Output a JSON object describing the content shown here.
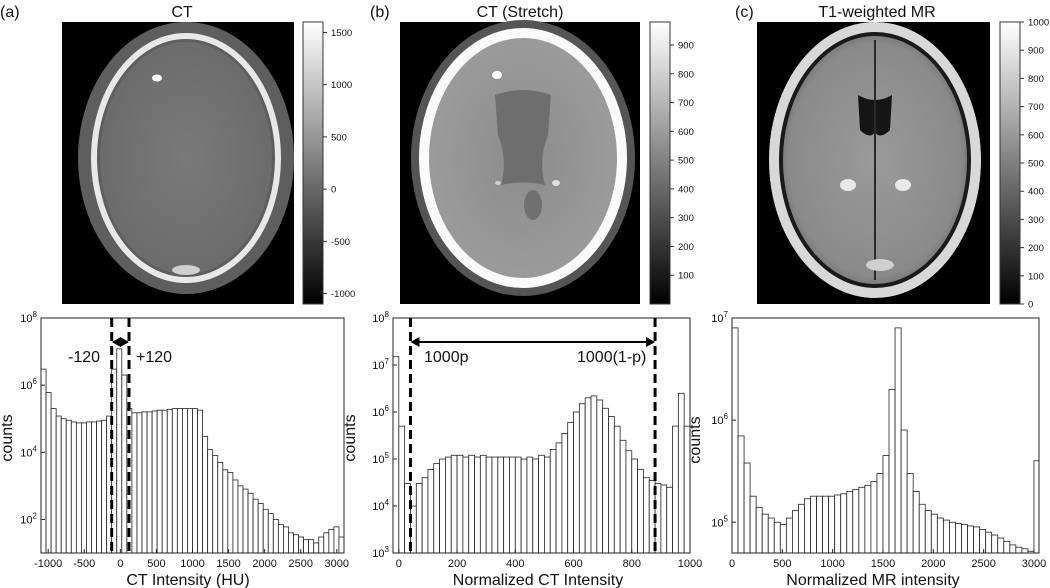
{
  "panels": [
    {
      "letter": "(a)",
      "title": "CT",
      "colorbar_ticks": [
        "1500",
        "1000",
        "500",
        "0",
        "-500",
        "-1000"
      ]
    },
    {
      "letter": "(b)",
      "title": "CT (Stretch)",
      "colorbar_ticks": [
        "900",
        "800",
        "700",
        "600",
        "500",
        "400",
        "300",
        "200",
        "100"
      ]
    },
    {
      "letter": "(c)",
      "title": "T1-weighted MR",
      "colorbar_ticks": [
        "1000",
        "900",
        "800",
        "700",
        "600",
        "500",
        "400",
        "300",
        "200",
        "100",
        "0"
      ]
    }
  ],
  "annotations": {
    "a_left": "-120",
    "a_right": "+120",
    "b_left": "1000p",
    "b_right": "1000(1-p)"
  },
  "chart_data": [
    {
      "type": "bar",
      "xlabel": "CT Intensity (HU)",
      "ylabel": "counts",
      "yscale": "log",
      "xlim": [
        -1100,
        3100
      ],
      "ylim": [
        10,
        100000000
      ],
      "x_ticks": [
        "-1000",
        "-500",
        "0",
        "500",
        "1000",
        "1500",
        "2000",
        "2500",
        "3000"
      ],
      "y_ticks": [
        {
          "base": "10",
          "exp": "2"
        },
        {
          "base": "10",
          "exp": "4"
        },
        {
          "base": "10",
          "exp": "6"
        },
        {
          "base": "10",
          "exp": "8"
        }
      ],
      "bin_start": -1100,
      "bin_width": 70,
      "values": [
        3000000,
        600000,
        200000,
        120000,
        100000,
        90000,
        80000,
        75000,
        75000,
        80000,
        80000,
        85000,
        90000,
        120000,
        3000000,
        12000000,
        2000000,
        200000,
        150000,
        150000,
        160000,
        160000,
        170000,
        180000,
        180000,
        190000,
        200000,
        200000,
        200000,
        200000,
        200000,
        180000,
        30000,
        12000,
        8000,
        5000,
        3000,
        2500,
        1500,
        1000,
        800,
        600,
        400,
        300,
        200,
        150,
        100,
        70,
        60,
        40,
        35,
        30,
        25,
        25,
        20,
        30,
        40,
        50,
        60,
        30
      ]
    },
    {
      "type": "bar",
      "xlabel": "Normalized CT Intensity",
      "ylabel": "counts",
      "yscale": "log",
      "xlim": [
        -20,
        1000
      ],
      "ylim": [
        1000,
        100000000
      ],
      "x_ticks": [
        "0",
        "200",
        "400",
        "600",
        "800",
        "1000"
      ],
      "y_ticks": [
        {
          "base": "10",
          "exp": "3"
        },
        {
          "base": "10",
          "exp": "4"
        },
        {
          "base": "10",
          "exp": "5"
        },
        {
          "base": "10",
          "exp": "6"
        },
        {
          "base": "10",
          "exp": "7"
        },
        {
          "base": "10",
          "exp": "8"
        }
      ],
      "bin_start": -20,
      "bin_width": 20,
      "values": [
        15000000,
        500000,
        30000,
        10000,
        30000,
        40000,
        60000,
        80000,
        100000,
        110000,
        120000,
        120000,
        110000,
        120000,
        110000,
        120000,
        110000,
        110000,
        110000,
        110000,
        110000,
        110000,
        100000,
        110000,
        100000,
        120000,
        110000,
        160000,
        220000,
        350000,
        600000,
        1000000,
        1500000,
        2000000,
        2200000,
        1800000,
        1200000,
        800000,
        500000,
        250000,
        150000,
        100000,
        60000,
        40000,
        35000,
        30000,
        28000,
        25000,
        500000,
        2500000,
        500000
      ]
    },
    {
      "type": "bar",
      "xlabel": "Normalized MR intensity",
      "ylabel": "counts",
      "yscale": "log",
      "xlim": [
        0,
        3050
      ],
      "ylim": [
        50000,
        10000000
      ],
      "x_ticks": [
        "0",
        "500",
        "1000",
        "1500",
        "2000",
        "2500",
        "3000"
      ],
      "y_ticks": [
        {
          "base": "10",
          "exp": "5"
        },
        {
          "base": "10",
          "exp": "6"
        },
        {
          "base": "10",
          "exp": "7"
        }
      ],
      "bin_start": 0,
      "bin_width": 60,
      "values": [
        8000000,
        700000,
        380000,
        180000,
        140000,
        120000,
        110000,
        100000,
        95000,
        110000,
        130000,
        150000,
        170000,
        180000,
        180000,
        180000,
        180000,
        185000,
        190000,
        200000,
        210000,
        220000,
        230000,
        250000,
        300000,
        450000,
        2000000,
        8000000,
        800000,
        300000,
        200000,
        150000,
        130000,
        120000,
        110000,
        105000,
        100000,
        97000,
        95000,
        92000,
        90000,
        85000,
        80000,
        75000,
        70000,
        65000,
        60000,
        57000,
        55000,
        52000,
        400000
      ]
    }
  ]
}
